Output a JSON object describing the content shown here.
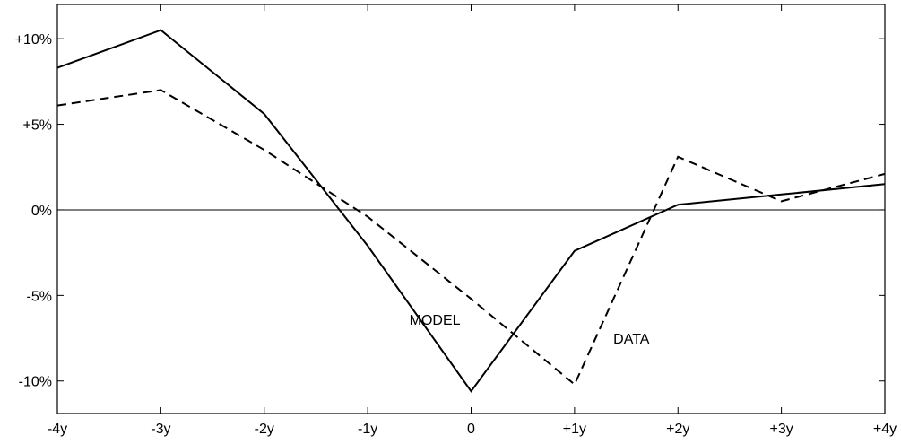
{
  "chart_data": {
    "type": "line",
    "x": [
      -4,
      -3,
      -2,
      -1,
      0,
      1,
      2,
      3,
      4
    ],
    "x_tick_labels": [
      "-4y",
      "-3y",
      "-2y",
      "-1y",
      "0",
      "+1y",
      "+2y",
      "+3y",
      "+4y"
    ],
    "y_ticks": [
      10,
      5,
      0,
      -5,
      -10
    ],
    "y_tick_labels": [
      "+10%",
      "+5%",
      "0%",
      "-5%",
      "-10%"
    ],
    "xlim": [
      -4,
      4
    ],
    "ylim": [
      -11.9,
      12
    ],
    "grid": false,
    "legend": "none",
    "baseline": 0,
    "series": [
      {
        "name": "MODEL",
        "style": "solid",
        "values": [
          8.3,
          10.5,
          5.6,
          -2.1,
          -10.6,
          -2.4,
          0.3,
          0.9,
          1.5
        ]
      },
      {
        "name": "DATA",
        "style": "dashed",
        "values": [
          6.1,
          7.0,
          3.5,
          -0.4,
          -5.2,
          -10.2,
          3.1,
          0.5,
          2.1
        ]
      }
    ],
    "annotations": [
      {
        "text": "MODEL",
        "x": -0.35,
        "y": -6.7
      },
      {
        "text": "DATA",
        "x": 1.55,
        "y": -7.8
      }
    ]
  }
}
